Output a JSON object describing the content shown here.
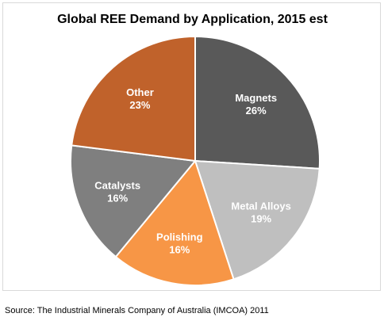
{
  "chart_data": {
    "type": "pie",
    "title": "Global REE Demand by Application, 2015 est",
    "categories": [
      "Magnets",
      "Metal Alloys",
      "Polishing",
      "Catalysts",
      "Other"
    ],
    "values": [
      26,
      19,
      16,
      16,
      23
    ],
    "value_labels": [
      "26%",
      "19%",
      "16%",
      "16%",
      "23%"
    ],
    "colors": [
      "#595959",
      "#bfbfbf",
      "#f79646",
      "#7f7f7f",
      "#c0622b"
    ],
    "legend": "none",
    "data_labels": "inside"
  },
  "source": "Source: The Industrial Minerals Company of Australia (IMCOA) 2011"
}
